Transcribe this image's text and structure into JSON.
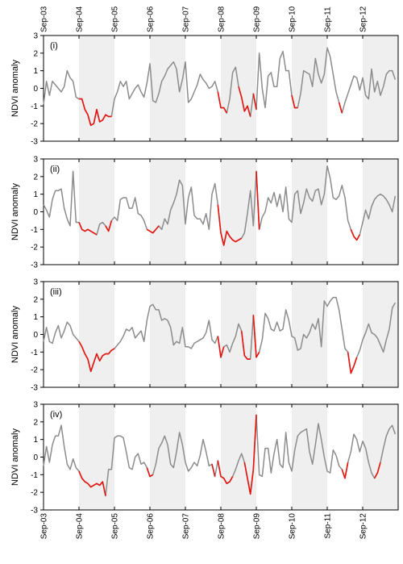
{
  "chart_data": {
    "type": "line",
    "ylabel": "NDVI anomaly",
    "ylim": [
      -3,
      3
    ],
    "yticks": [
      -3,
      -2,
      -1,
      0,
      1,
      2,
      3
    ],
    "x_tick_labels": [
      "Sep-03",
      "Sep-04",
      "Sep-05",
      "Sep-06",
      "Sep-07",
      "Sep-08",
      "Sep-09",
      "Sep-10",
      "Sep-11",
      "Sep-12"
    ],
    "x_start": "2003-09",
    "x_end": "2013-08",
    "shaded_periods": [
      [
        "2004-09",
        "2005-09"
      ],
      [
        "2006-09",
        "2007-09"
      ],
      [
        "2008-09",
        "2009-09"
      ],
      [
        "2010-09",
        "2011-09"
      ],
      [
        "2012-09",
        "2013-09"
      ]
    ],
    "colors": {
      "series": "#8c8c8c",
      "highlight": "#e8130e",
      "shade": "#efefef"
    },
    "panels": [
      {
        "label": "(i)",
        "x": [
          "2003-09",
          "2003-10",
          "2003-11",
          "2003-12",
          "2004-01",
          "2004-02",
          "2004-03",
          "2004-04",
          "2004-05",
          "2004-06",
          "2004-07",
          "2004-08",
          "2004-09",
          "2004-10",
          "2004-11",
          "2004-12",
          "2005-01",
          "2005-02",
          "2005-03",
          "2005-04",
          "2005-05",
          "2005-06",
          "2005-07",
          "2005-08",
          "2005-09",
          "2005-10",
          "2005-11",
          "2005-12",
          "2006-01",
          "2006-02",
          "2006-03",
          "2006-04",
          "2006-05",
          "2006-06",
          "2006-07",
          "2006-08",
          "2006-09",
          "2006-10",
          "2006-11",
          "2006-12",
          "2007-01",
          "2007-02",
          "2007-03",
          "2007-04",
          "2007-05",
          "2007-06",
          "2007-07",
          "2007-08",
          "2007-09",
          "2007-10",
          "2007-11",
          "2007-12",
          "2008-01",
          "2008-02",
          "2008-03",
          "2008-04",
          "2008-05",
          "2008-06",
          "2008-07",
          "2008-08",
          "2008-09",
          "2008-10",
          "2008-11",
          "2008-12",
          "2009-01",
          "2009-02",
          "2009-03",
          "2009-04",
          "2009-05",
          "2009-06",
          "2009-07",
          "2009-08",
          "2009-09",
          "2009-10",
          "2009-11",
          "2009-12",
          "2010-01",
          "2010-02",
          "2010-03",
          "2010-04",
          "2010-05",
          "2010-06",
          "2010-07",
          "2010-08",
          "2010-09",
          "2010-10",
          "2010-11",
          "2010-12",
          "2011-01",
          "2011-02",
          "2011-03",
          "2011-04",
          "2011-05",
          "2011-06",
          "2011-07",
          "2011-08",
          "2011-09",
          "2011-10",
          "2011-11",
          "2011-12",
          "2012-01",
          "2012-02",
          "2012-03",
          "2012-04",
          "2012-05",
          "2012-06",
          "2012-07",
          "2012-08",
          "2012-09",
          "2012-10",
          "2012-11",
          "2012-12",
          "2013-01",
          "2013-02",
          "2013-03",
          "2013-04",
          "2013-05",
          "2013-06",
          "2013-07",
          "2013-08"
        ],
        "y": [
          -0.9,
          0.4,
          -0.4,
          0.4,
          0.2,
          0.0,
          -0.2,
          0.1,
          1.0,
          0.6,
          0.4,
          -0.5,
          -0.6,
          -0.6,
          -1.2,
          -1.5,
          -2.1,
          -2.0,
          -1.2,
          -1.9,
          -1.8,
          -1.5,
          -1.6,
          -1.6,
          -0.6,
          -0.2,
          0.4,
          0.1,
          0.4,
          -0.6,
          -0.3,
          0.0,
          0.2,
          -0.2,
          -0.5,
          0.3,
          1.4,
          -0.7,
          -0.8,
          -0.3,
          0.4,
          0.7,
          1.1,
          1.3,
          1.5,
          1.1,
          -0.2,
          0.5,
          1.5,
          -0.8,
          -0.6,
          -0.2,
          0.2,
          0.8,
          0.5,
          0.3,
          0.0,
          0.1,
          0.4,
          -0.2,
          -1.1,
          -1.1,
          -1.4,
          -0.6,
          0.9,
          1.2,
          0.1,
          -0.5,
          -1.3,
          -1.0,
          -1.6,
          -0.3,
          -1.2,
          2.0,
          0.0,
          -1.1,
          0.7,
          0.9,
          0.1,
          0.1,
          1.7,
          2.1,
          1.0,
          1.0,
          -0.4,
          -1.1,
          -1.1,
          -0.3,
          1.0,
          0.9,
          0.8,
          0.1,
          1.7,
          0.8,
          0.3,
          0.8,
          2.3,
          1.8,
          0.8,
          -0.2,
          -0.8,
          -1.4,
          -0.8,
          -0.3,
          0.2,
          0.7,
          0.6,
          -0.1,
          0.6,
          -0.4,
          -0.6,
          1.1,
          -0.2,
          0.4,
          -0.4,
          0.1,
          0.8,
          1.0,
          1.0,
          0.5
        ],
        "highlight": [
          [
            12,
            23
          ],
          [
            59,
            62
          ],
          [
            66,
            70
          ],
          [
            71,
            72
          ],
          [
            84,
            86
          ],
          [
            100,
            101
          ]
        ]
      },
      {
        "label": "(ii)",
        "x_same_as": "(i)",
        "y": [
          0.4,
          0.1,
          -0.3,
          0.7,
          1.2,
          1.2,
          1.3,
          0.2,
          -0.4,
          -0.8,
          2.3,
          -0.6,
          -0.6,
          -1.0,
          -1.1,
          -1.0,
          -1.1,
          -1.2,
          -1.3,
          -0.7,
          -0.6,
          -0.8,
          -1.1,
          -0.5,
          -0.3,
          -0.5,
          0.7,
          0.8,
          0.8,
          0.2,
          0.2,
          0.8,
          -0.1,
          -0.2,
          -0.5,
          -1.0,
          -1.1,
          -1.2,
          -1.0,
          -0.8,
          -1.0,
          -0.4,
          -0.7,
          0.1,
          0.5,
          1.0,
          1.8,
          1.5,
          -0.7,
          0.8,
          1.4,
          -0.2,
          -0.4,
          -0.4,
          -0.7,
          -0.1,
          -1.0,
          1.0,
          1.6,
          0.4,
          -1.2,
          -1.9,
          -1.1,
          -1.4,
          -1.6,
          -1.7,
          -1.6,
          -1.5,
          -1.2,
          -0.1,
          1.2,
          -0.8,
          2.3,
          -1.0,
          -0.3,
          0.0,
          0.8,
          0.5,
          1.1,
          0.3,
          1.0,
          0.0,
          1.4,
          -0.4,
          -0.6,
          1.0,
          1.2,
          -0.1,
          0.5,
          1.3,
          0.8,
          0.6,
          1.2,
          1.3,
          0.4,
          1.0,
          2.6,
          1.9,
          0.8,
          0.7,
          0.9,
          1.5,
          0.8,
          -0.5,
          -1.0,
          -1.4,
          -1.6,
          -1.3,
          -0.6,
          0.1,
          -0.4,
          0.3,
          0.7,
          0.9,
          1.0,
          0.9,
          0.7,
          0.4,
          0.0,
          0.9
        ],
        "highlight": [
          [
            12,
            18
          ],
          [
            21,
            23
          ],
          [
            35,
            39
          ],
          [
            59,
            67
          ],
          [
            72,
            73
          ],
          [
            104,
            107
          ]
        ]
      },
      {
        "label": "(iii)",
        "x_same_as": "(i)",
        "y": [
          -0.4,
          0.4,
          -0.4,
          -0.5,
          0.1,
          0.5,
          -0.2,
          0.2,
          0.7,
          0.5,
          0.0,
          -0.2,
          -0.4,
          -0.7,
          -1.1,
          -1.4,
          -2.1,
          -1.6,
          -1.1,
          -1.5,
          -1.2,
          -1.1,
          -1.1,
          -0.9,
          -0.8,
          -0.6,
          -0.4,
          -0.1,
          0.3,
          0.2,
          0.4,
          -0.2,
          0.0,
          0.2,
          -0.4,
          0.8,
          1.6,
          1.7,
          1.4,
          1.4,
          0.8,
          0.9,
          0.8,
          0.4,
          -0.6,
          -0.4,
          -0.5,
          0.4,
          -0.7,
          -0.7,
          -0.8,
          -0.5,
          -0.4,
          -0.3,
          -0.2,
          0.1,
          0.8,
          -0.3,
          -0.5,
          -0.1,
          -1.3,
          -0.7,
          -0.6,
          -1.0,
          -0.5,
          -0.1,
          0.6,
          0.2,
          -1.2,
          -1.4,
          -1.4,
          1.1,
          -1.3,
          -1.0,
          -0.3,
          1.2,
          0.9,
          0.3,
          0.2,
          0.7,
          0.2,
          0.3,
          1.4,
          0.8,
          -0.1,
          -0.2,
          -0.9,
          -0.8,
          0.0,
          -0.2,
          0.1,
          0.6,
          0.3,
          0.9,
          -0.7,
          1.9,
          1.6,
          1.9,
          2.1,
          2.1,
          1.4,
          0.3,
          -0.8,
          -1.0,
          -2.2,
          -1.8,
          -1.3,
          -0.9,
          -0.3,
          0.1,
          0.6,
          0.1,
          0.0,
          -0.2,
          -0.6,
          -1.0,
          -0.3,
          0.3,
          1.5,
          1.8
        ],
        "highlight": [
          [
            12,
            24
          ],
          [
            59,
            61
          ],
          [
            67,
            70
          ],
          [
            71,
            73
          ],
          [
            103,
            106
          ]
        ]
      },
      {
        "label": "(iv)",
        "x_same_as": "(i)",
        "y": [
          -0.5,
          0.6,
          -0.3,
          0.7,
          1.2,
          1.2,
          1.8,
          0.6,
          -0.4,
          -0.7,
          -0.1,
          -0.6,
          -0.8,
          -1.2,
          -1.4,
          -1.5,
          -1.7,
          -1.6,
          -1.5,
          -1.6,
          -1.4,
          -2.2,
          -0.7,
          -0.7,
          1.1,
          1.2,
          1.2,
          1.1,
          0.3,
          -0.6,
          -0.7,
          0.0,
          0.2,
          -0.4,
          -0.3,
          -0.6,
          -1.1,
          -1.0,
          -0.4,
          0.5,
          0.8,
          1.2,
          0.7,
          -0.4,
          -0.6,
          0.3,
          1.4,
          0.7,
          -0.3,
          -0.8,
          -0.6,
          -0.3,
          -0.5,
          0.1,
          1.0,
          0.3,
          -0.5,
          -0.4,
          -1.1,
          -0.2,
          -1.1,
          -1.2,
          -1.5,
          -1.4,
          -1.1,
          -0.7,
          -0.2,
          0.2,
          -0.3,
          -1.2,
          -2.1,
          -0.7,
          2.4,
          -1.0,
          -1.1,
          0.5,
          0.5,
          -0.9,
          0.2,
          1.0,
          -0.4,
          -0.6,
          1.4,
          -0.3,
          -0.8,
          0.4,
          1.2,
          1.4,
          1.5,
          1.6,
          0.3,
          -0.4,
          0.7,
          1.9,
          1.0,
          0.0,
          -0.8,
          -0.9,
          0.4,
          0.1,
          -0.5,
          -0.7,
          -1.2,
          -0.3,
          0.3,
          1.3,
          1.0,
          0.3,
          0.9,
          0.5,
          -0.3,
          -0.9,
          -1.2,
          -0.9,
          -0.3,
          0.5,
          1.2,
          1.6,
          1.8,
          1.3
        ],
        "highlight": [
          [
            12,
            21
          ],
          [
            35,
            37
          ],
          [
            57,
            58
          ],
          [
            59,
            64
          ],
          [
            68,
            72
          ],
          [
            101,
            103
          ],
          [
            112,
            114
          ]
        ]
      }
    ]
  }
}
